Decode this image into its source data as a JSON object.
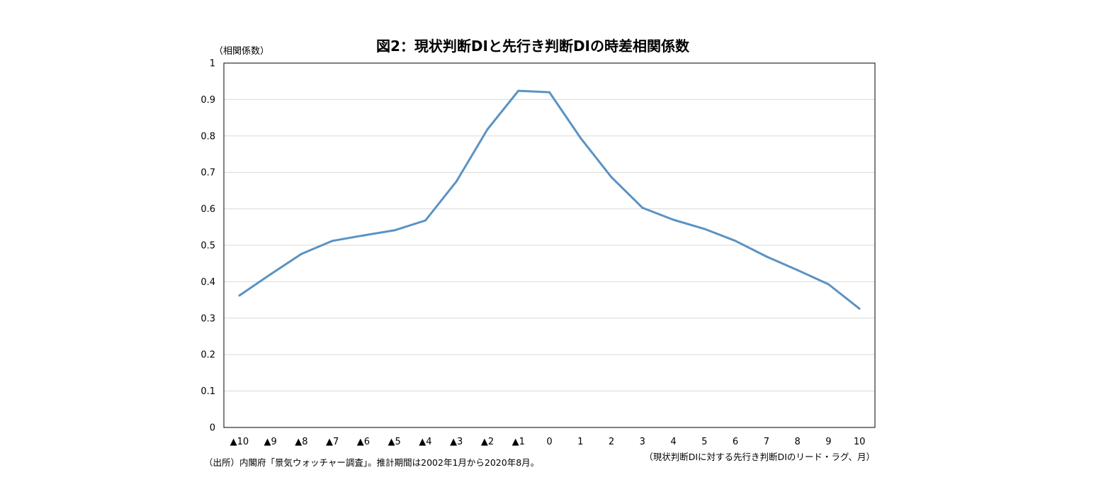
{
  "chart_data": {
    "type": "line",
    "title": "図2：現状判断DIと先行き判断DIの時差相関係数",
    "ylabel": "（相関係数）",
    "xlabel": "（現状判断DIに対する先行き判断DIのリード・ラグ、月）",
    "source_note": "（出所）内閣府「景気ウォッチャー調査」。推計期間は2002年1月から2020年8月。",
    "ylim": [
      0,
      1
    ],
    "yticks": [
      "0",
      "0.1",
      "0.2",
      "0.3",
      "0.4",
      "0.5",
      "0.6",
      "0.7",
      "0.8",
      "0.9",
      "1"
    ],
    "categories": [
      "▲10",
      "▲9",
      "▲8",
      "▲7",
      "▲6",
      "▲5",
      "▲4",
      "▲3",
      "▲2",
      "▲1",
      "0",
      "1",
      "2",
      "3",
      "4",
      "5",
      "6",
      "7",
      "8",
      "9",
      "10"
    ],
    "series": [
      {
        "color": "#5b93c3",
        "values": [
          0.362,
          0.42,
          0.476,
          0.512,
          0.527,
          0.541,
          0.568,
          0.675,
          0.818,
          0.924,
          0.92,
          0.795,
          0.687,
          0.603,
          0.57,
          0.545,
          0.512,
          0.469,
          0.432,
          0.393,
          0.326
        ]
      }
    ],
    "grid": true,
    "legend": "none"
  }
}
